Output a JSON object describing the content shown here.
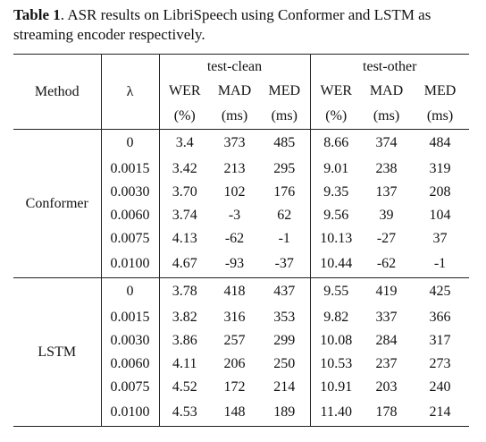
{
  "caption": {
    "label": "Table 1",
    "text": ". ASR results on LibriSpeech using Conformer and LSTM as streaming encoder respectively."
  },
  "table": {
    "header": {
      "method": "Method",
      "lambda": "λ",
      "groups": [
        "test-clean",
        "test-other"
      ],
      "metrics": [
        "WER",
        "MAD",
        "MED",
        "WER",
        "MAD",
        "MED"
      ],
      "units": [
        "(%)",
        "(ms)",
        "(ms)",
        "(%)",
        "(ms)",
        "(ms)"
      ]
    },
    "sections": [
      {
        "name": "Conformer",
        "rows": [
          [
            "0",
            "3.4",
            "373",
            "485",
            "8.66",
            "374",
            "484"
          ],
          [
            "0.0015",
            "3.42",
            "213",
            "295",
            "9.01",
            "238",
            "319"
          ],
          [
            "0.0030",
            "3.70",
            "102",
            "176",
            "9.35",
            "137",
            "208"
          ],
          [
            "0.0060",
            "3.74",
            "-3",
            "62",
            "9.56",
            "39",
            "104"
          ],
          [
            "0.0075",
            "4.13",
            "-62",
            "-1",
            "10.13",
            "-27",
            "37"
          ],
          [
            "0.0100",
            "4.67",
            "-93",
            "-37",
            "10.44",
            "-62",
            "-1"
          ]
        ]
      },
      {
        "name": "LSTM",
        "rows": [
          [
            "0",
            "3.78",
            "418",
            "437",
            "9.55",
            "419",
            "425"
          ],
          [
            "0.0015",
            "3.82",
            "316",
            "353",
            "9.82",
            "337",
            "366"
          ],
          [
            "0.0030",
            "3.86",
            "257",
            "299",
            "10.08",
            "284",
            "317"
          ],
          [
            "0.0060",
            "4.11",
            "206",
            "250",
            "10.53",
            "237",
            "273"
          ],
          [
            "0.0075",
            "4.52",
            "172",
            "214",
            "10.91",
            "203",
            "240"
          ],
          [
            "0.0100",
            "4.53",
            "148",
            "189",
            "11.40",
            "178",
            "214"
          ]
        ]
      }
    ]
  }
}
